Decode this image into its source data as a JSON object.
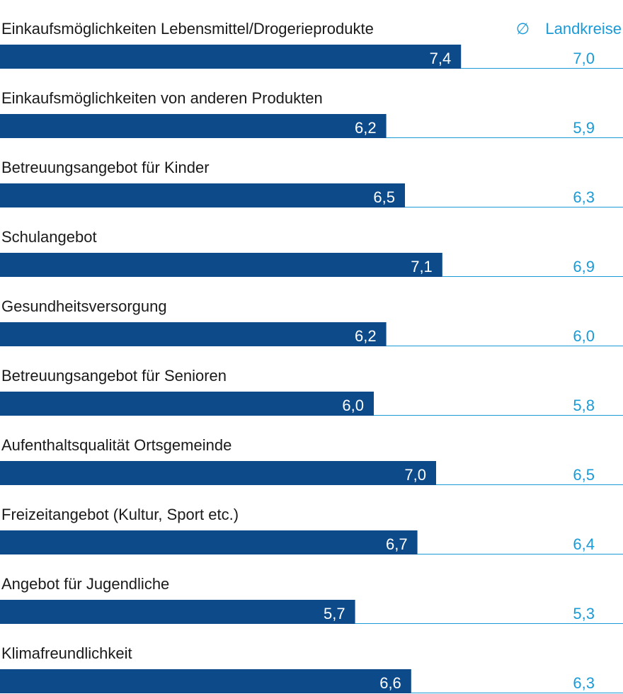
{
  "colors": {
    "bar": "#0d4a8a",
    "accent": "#1a9bd7",
    "label": "#1a1a1a",
    "rule": "#1a9bd7"
  },
  "legend": {
    "icon": "average-symbol-icon",
    "symbol": "∅",
    "label": "Landkreise"
  },
  "chart_data": {
    "type": "bar",
    "orientation": "horizontal",
    "xlim": [
      0,
      10
    ],
    "grid": false,
    "legend_position": "top-right",
    "categories": [
      "Einkaufsmöglichkeiten Lebensmittel/Drogerieprodukte",
      "Einkaufsmöglichkeiten von anderen Produkten",
      "Betreuungsangebot für Kinder",
      "Schulangebot",
      "Gesundheitsversorgung",
      "Betreuungsangebot für Senioren",
      "Aufenthaltsqualität Ortsgemeinde",
      "Freizeitangebot (Kultur, Sport etc.)",
      "Angebot für Jugendliche",
      "Klimafreundlichkeit"
    ],
    "series": [
      {
        "values": [
          7.4,
          6.2,
          6.5,
          7.1,
          6.2,
          6.0,
          7.0,
          6.7,
          5.7,
          6.6
        ],
        "labels": [
          "7,4",
          "6,2",
          "6,5",
          "7,1",
          "6,2",
          "6,0",
          "7,0",
          "6,7",
          "5,7",
          "6,6"
        ]
      },
      {
        "name": "∅ Landkreise",
        "values": [
          7.0,
          5.9,
          6.3,
          6.9,
          6.0,
          5.8,
          6.5,
          6.4,
          5.3,
          6.3
        ],
        "labels": [
          "7,0",
          "5,9",
          "6,3",
          "6,9",
          "6,0",
          "5,8",
          "6,5",
          "6,4",
          "5,3",
          "6,3"
        ]
      }
    ]
  }
}
